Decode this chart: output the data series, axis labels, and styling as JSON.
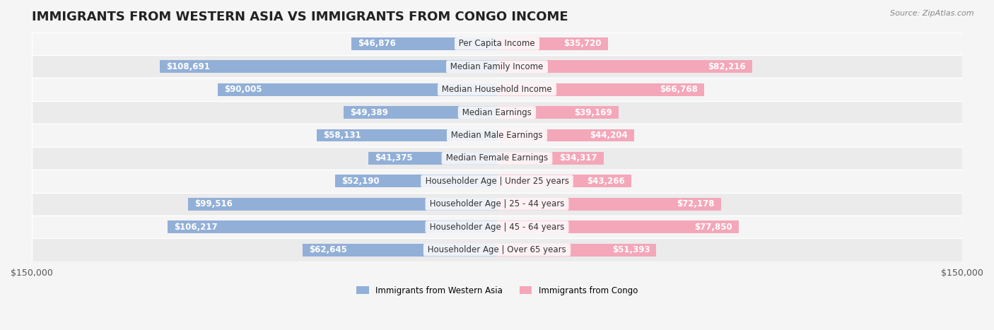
{
  "title": "IMMIGRANTS FROM WESTERN ASIA VS IMMIGRANTS FROM CONGO INCOME",
  "source": "Source: ZipAtlas.com",
  "categories": [
    "Per Capita Income",
    "Median Family Income",
    "Median Household Income",
    "Median Earnings",
    "Median Male Earnings",
    "Median Female Earnings",
    "Householder Age | Under 25 years",
    "Householder Age | 25 - 44 years",
    "Householder Age | 45 - 64 years",
    "Householder Age | Over 65 years"
  ],
  "western_asia_values": [
    46876,
    108691,
    90005,
    49389,
    58131,
    41375,
    52190,
    99516,
    106217,
    62645
  ],
  "congo_values": [
    35720,
    82216,
    66768,
    39169,
    44204,
    34317,
    43266,
    72178,
    77850,
    51393
  ],
  "western_asia_labels": [
    "$46,876",
    "$108,691",
    "$90,005",
    "$49,389",
    "$58,131",
    "$41,375",
    "$52,190",
    "$99,516",
    "$106,217",
    "$62,645"
  ],
  "congo_labels": [
    "$35,720",
    "$82,216",
    "$66,768",
    "$39,169",
    "$44,204",
    "$34,317",
    "$43,266",
    "$72,178",
    "$77,850",
    "$51,393"
  ],
  "western_asia_color": "#92afd7",
  "western_asia_color_dark": "#6b93c9",
  "congo_color": "#f4a7b9",
  "congo_color_dark": "#e87fa0",
  "max_val": 150000,
  "bar_height": 0.55,
  "bg_color": "#f5f5f5",
  "row_bg_light": "#f5f5f5",
  "row_bg_alt": "#ebebeb",
  "legend_western_asia": "Immigrants from Western Asia",
  "legend_congo": "Immigrants from Congo",
  "title_fontsize": 13,
  "label_fontsize": 8.5,
  "category_fontsize": 8.5,
  "axis_fontsize": 9
}
